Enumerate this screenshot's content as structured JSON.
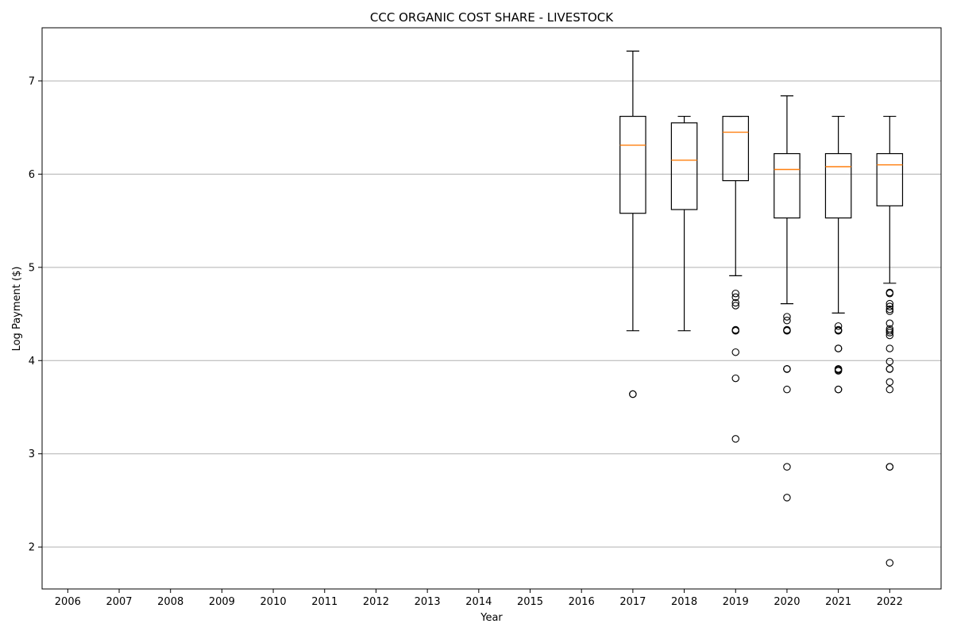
{
  "chart_data": {
    "type": "boxplot",
    "title": "CCC ORGANIC COST SHARE - LIVESTOCK",
    "xlabel": "Year",
    "ylabel": "Log Payment ($)",
    "categories": [
      "2006",
      "2007",
      "2008",
      "2009",
      "2010",
      "2011",
      "2012",
      "2013",
      "2014",
      "2015",
      "2016",
      "2017",
      "2018",
      "2019",
      "2020",
      "2021",
      "2022"
    ],
    "y_ticks": [
      2,
      3,
      4,
      5,
      6,
      7
    ],
    "ylim": [
      1.55,
      7.57
    ],
    "grid": "y-major",
    "boxes": [
      {
        "category": "2017",
        "whisker_low": 4.32,
        "q1": 5.58,
        "median": 6.31,
        "q3": 6.62,
        "whisker_high": 7.32,
        "outliers": [
          3.64,
          3.64
        ]
      },
      {
        "category": "2018",
        "whisker_low": 4.32,
        "q1": 5.62,
        "median": 6.15,
        "q3": 6.55,
        "whisker_high": 6.62,
        "outliers": []
      },
      {
        "category": "2019",
        "whisker_low": 4.91,
        "q1": 5.93,
        "median": 6.45,
        "q3": 6.62,
        "whisker_high": 6.62,
        "outliers": [
          4.72,
          4.68,
          4.62,
          4.59,
          4.33,
          4.32,
          4.32,
          4.09,
          3.81,
          3.16
        ]
      },
      {
        "category": "2020",
        "whisker_low": 4.61,
        "q1": 5.53,
        "median": 6.05,
        "q3": 6.22,
        "whisker_high": 6.84,
        "outliers": [
          4.47,
          4.43,
          4.33,
          4.32,
          4.32,
          3.91,
          3.91,
          3.91,
          3.69,
          2.86,
          2.53
        ]
      },
      {
        "category": "2021",
        "whisker_low": 4.51,
        "q1": 5.53,
        "median": 6.08,
        "q3": 6.22,
        "whisker_high": 6.62,
        "outliers": [
          4.37,
          4.33,
          4.32,
          4.32,
          4.13,
          4.13,
          3.91,
          3.91,
          3.9,
          3.89,
          3.69,
          3.69
        ]
      },
      {
        "category": "2022",
        "whisker_low": 4.83,
        "q1": 5.66,
        "median": 6.1,
        "q3": 6.22,
        "whisker_high": 6.62,
        "outliers": [
          4.73,
          4.72,
          4.61,
          4.58,
          4.55,
          4.53,
          4.4,
          4.34,
          4.32,
          4.3,
          4.27,
          4.13,
          3.99,
          3.91,
          3.91,
          3.77,
          3.69,
          2.86,
          2.86,
          1.83
        ]
      }
    ],
    "colors": {
      "box": "#000000",
      "median": "#ff7f0e",
      "grid": "#b0b0b0",
      "outlier": "#000000"
    }
  }
}
